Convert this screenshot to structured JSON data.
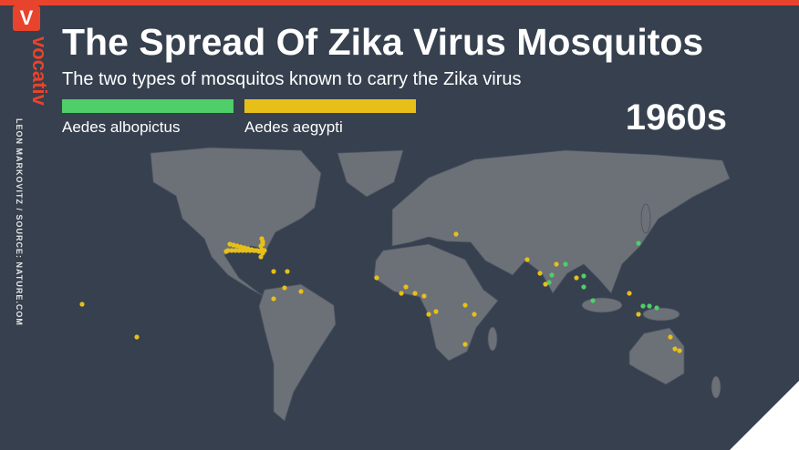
{
  "brand": {
    "badge": "V",
    "name": "vocativ"
  },
  "header": {
    "title": "The Spread Of Zika Virus Mosquitos",
    "subtitle": "The two types of mosquitos known to carry the Zika virus"
  },
  "legend": {
    "items": [
      {
        "label": "Aedes albopictus",
        "color": "#4fce6a"
      },
      {
        "label": "Aedes aegypti",
        "color": "#e6c019"
      }
    ]
  },
  "period": "1960s",
  "credit": "LEON MARKOVITZ / SOURCE: NATURE.COM"
}
